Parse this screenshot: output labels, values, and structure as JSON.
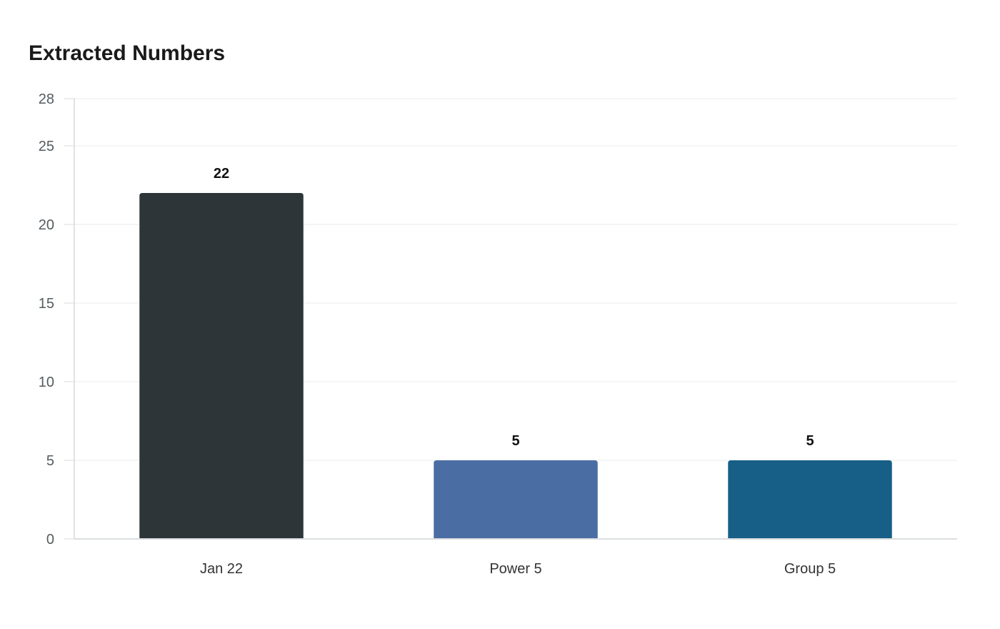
{
  "chart_data": {
    "type": "bar",
    "title": "Extracted Numbers",
    "xlabel": "",
    "ylabel": "",
    "categories": [
      "Jan 22",
      "Power 5",
      "Group 5"
    ],
    "values": [
      22,
      5,
      5
    ],
    "value_labels": [
      "22",
      "5",
      "5"
    ],
    "colors": [
      "#2e3538",
      "#4a6ea3",
      "#175f87"
    ],
    "ylim": [
      0,
      28
    ],
    "yticks": [
      0,
      5,
      10,
      15,
      20,
      25,
      28
    ],
    "ytick_labels": [
      "0",
      "5",
      "10",
      "15",
      "20",
      "25",
      "28"
    ],
    "grid": true,
    "legend": "none"
  }
}
